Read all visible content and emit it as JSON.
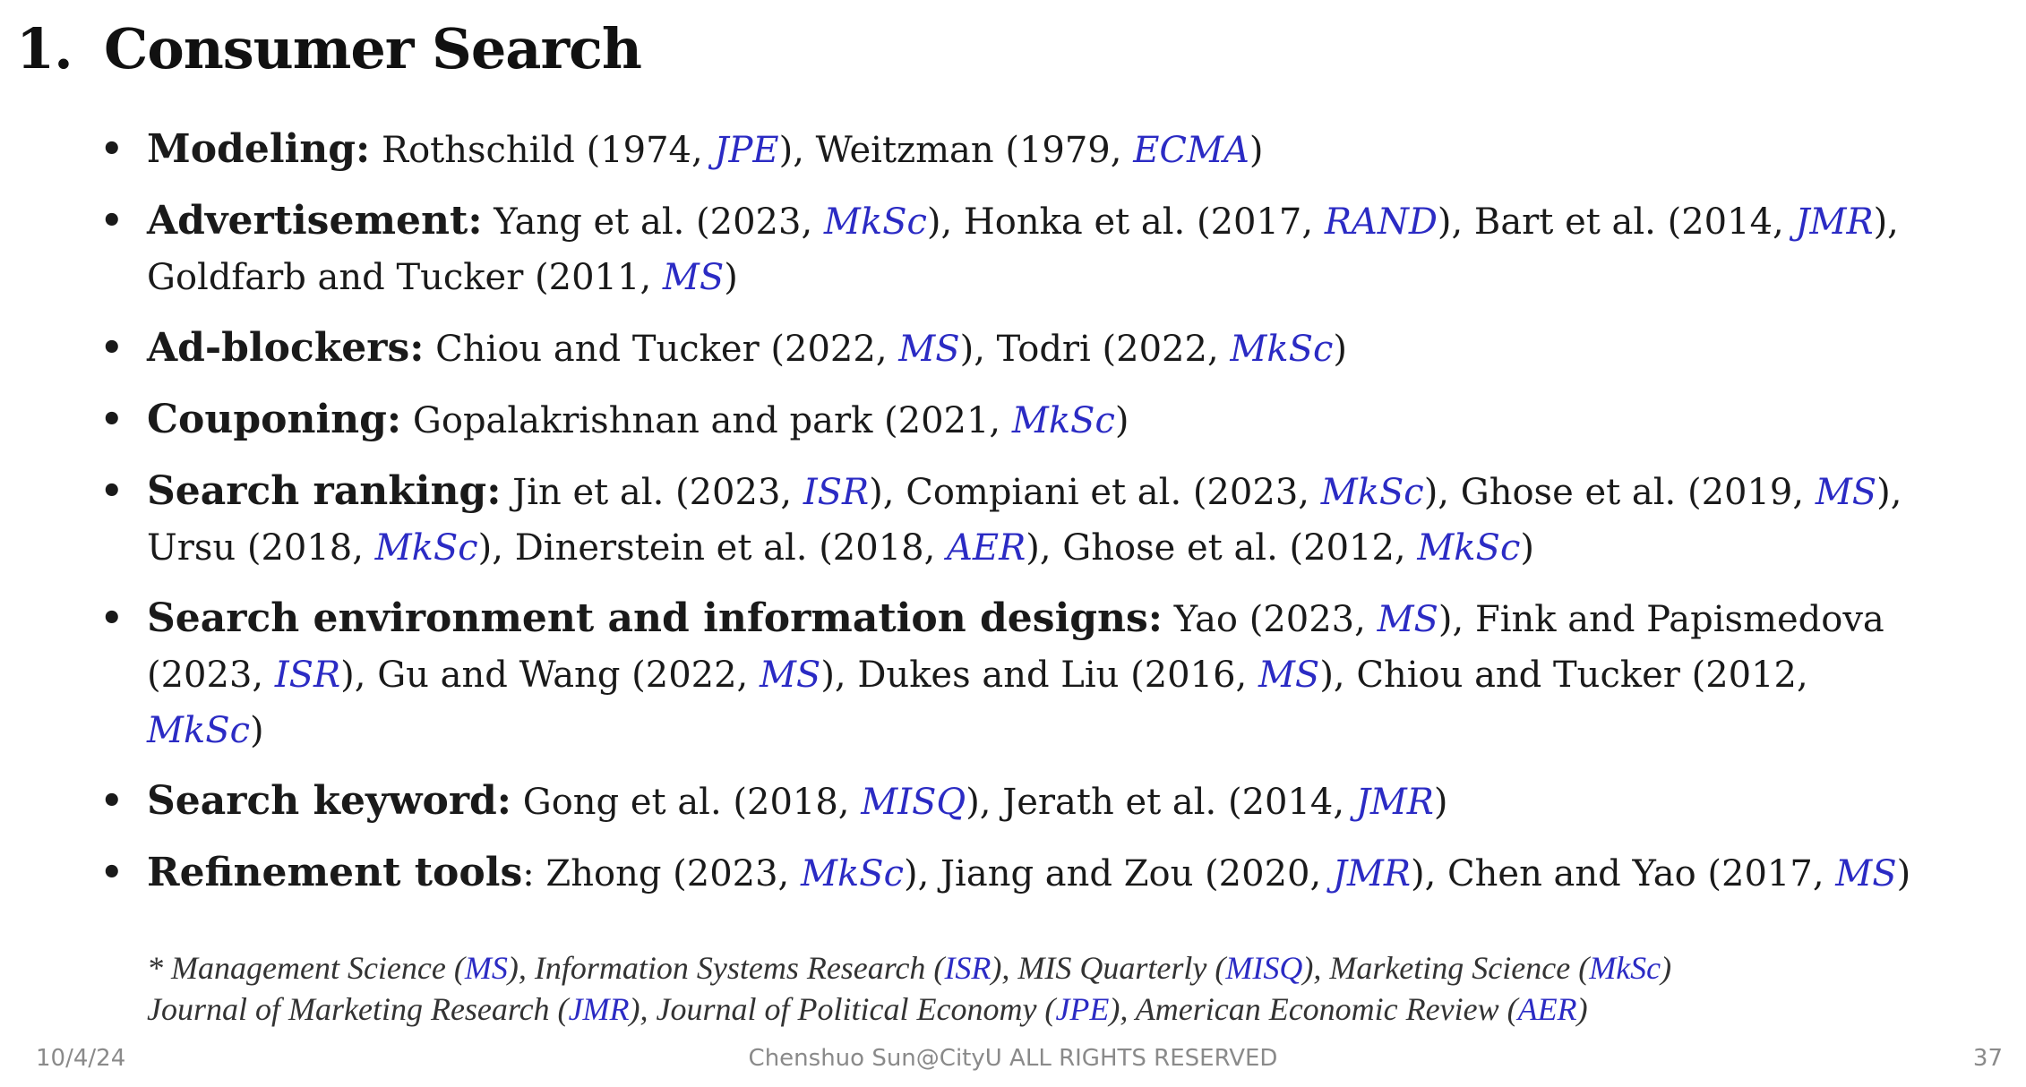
{
  "title": {
    "number": "1.",
    "text": "Consumer Search"
  },
  "bullets": [
    {
      "heading": "Modeling:",
      "segments": [
        {
          "t": " Rothschild (1974, "
        },
        {
          "t": "JPE",
          "j": true
        },
        {
          "t": "), Weitzman (1979, "
        },
        {
          "t": "ECMA",
          "j": true
        },
        {
          "t": ")"
        }
      ]
    },
    {
      "heading": "Advertisement:",
      "segments": [
        {
          "t": " Yang et al. (2023, "
        },
        {
          "t": "MkSc",
          "j": true
        },
        {
          "t": "), Honka et al. (2017, "
        },
        {
          "t": "RAND",
          "j": true
        },
        {
          "t": "), Bart et al. (2014, "
        },
        {
          "t": "JMR",
          "j": true
        },
        {
          "t": "), Goldfarb and Tucker (2011, "
        },
        {
          "t": "MS",
          "j": true
        },
        {
          "t": ")"
        }
      ]
    },
    {
      "heading": "Ad-blockers:",
      "segments": [
        {
          "t": " Chiou and Tucker (2022, "
        },
        {
          "t": "MS",
          "j": true
        },
        {
          "t": "), Todri (2022, "
        },
        {
          "t": "MkSc",
          "j": true
        },
        {
          "t": ")"
        }
      ]
    },
    {
      "heading": "Couponing:",
      "segments": [
        {
          "t": " Gopalakrishnan and park (2021, "
        },
        {
          "t": "MkSc",
          "j": true
        },
        {
          "t": ")"
        }
      ]
    },
    {
      "heading": "Search ranking:",
      "segments": [
        {
          "t": " Jin et al. (2023, "
        },
        {
          "t": "ISR",
          "j": true
        },
        {
          "t": "), Compiani et al. (2023, "
        },
        {
          "t": "MkSc",
          "j": true
        },
        {
          "t": "), Ghose et al. (2019, "
        },
        {
          "t": "MS",
          "j": true
        },
        {
          "t": "), Ursu (2018, "
        },
        {
          "t": "MkSc",
          "j": true
        },
        {
          "t": "), Dinerstein et al. (2018, "
        },
        {
          "t": "AER",
          "j": true
        },
        {
          "t": "), Ghose et al. (2012, "
        },
        {
          "t": "MkSc",
          "j": true
        },
        {
          "t": ")"
        }
      ]
    },
    {
      "heading": "Search environment and information designs:",
      "segments": [
        {
          "t": " Yao (2023, "
        },
        {
          "t": "MS",
          "j": true
        },
        {
          "t": "), Fink and Papismedova (2023, "
        },
        {
          "t": "ISR",
          "j": true
        },
        {
          "t": "), Gu and Wang (2022, "
        },
        {
          "t": "MS",
          "j": true
        },
        {
          "t": "), Dukes and Liu (2016, "
        },
        {
          "t": "MS",
          "j": true
        },
        {
          "t": "), Chiou and Tucker (2012, "
        },
        {
          "t": "MkSc",
          "j": true
        },
        {
          "t": ")"
        }
      ]
    },
    {
      "heading": "Search keyword:",
      "segments": [
        {
          "t": " Gong et al. (2018, "
        },
        {
          "t": "MISQ",
          "j": true
        },
        {
          "t": "), Jerath et al. (2014, "
        },
        {
          "t": "JMR",
          "j": true
        },
        {
          "t": ")"
        }
      ]
    },
    {
      "heading": "Refinement tools",
      "segments": [
        {
          "t": ": Zhong (2023, "
        },
        {
          "t": "MkSc",
          "j": true
        },
        {
          "t": "), Jiang and Zou (2020, "
        },
        {
          "t": "JMR",
          "j": true
        },
        {
          "t": "), Chen and Yao (2017, "
        },
        {
          "t": "MS",
          "j": true
        },
        {
          "t": ")"
        }
      ]
    }
  ],
  "footnote": [
    [
      {
        "t": "* Management Science ("
      },
      {
        "t": "MS",
        "j": true
      },
      {
        "t": "), Information Systems Research ("
      },
      {
        "t": "ISR",
        "j": true
      },
      {
        "t": "), MIS Quarterly ("
      },
      {
        "t": "MISQ",
        "j": true
      },
      {
        "t": "), Marketing Science ("
      },
      {
        "t": "MkSc",
        "j": true
      },
      {
        "t": ")"
      }
    ],
    [
      {
        "t": "Journal of Marketing Research ("
      },
      {
        "t": "JMR",
        "j": true
      },
      {
        "t": "), Journal of Political Economy ("
      },
      {
        "t": "JPE",
        "j": true
      },
      {
        "t": "), American Economic Review ("
      },
      {
        "t": "AER",
        "j": true
      },
      {
        "t": ")"
      }
    ]
  ],
  "footer": {
    "date": "10/4/24",
    "center": "Chenshuo Sun@CityU ALL RIGHTS RESERVED",
    "page": "37"
  },
  "colors": {
    "journal": "#2b2bc4",
    "text": "#1a1a1a",
    "footer": "#8a8a8a"
  }
}
